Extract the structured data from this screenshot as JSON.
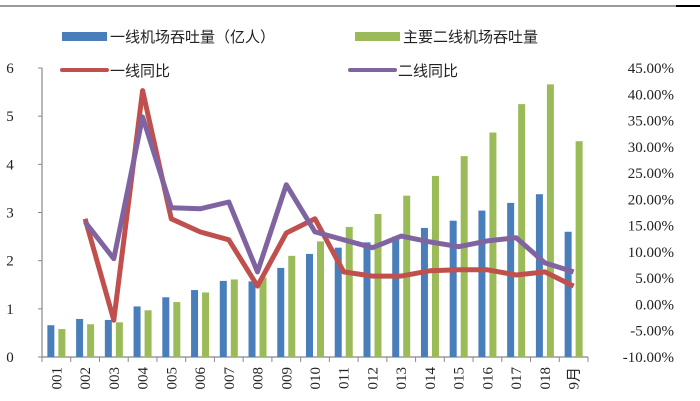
{
  "chart_data": {
    "type": "bar+line",
    "categories": [
      "001",
      "002",
      "003",
      "004",
      "005",
      "006",
      "007",
      "008",
      "009",
      "010",
      "011",
      "012",
      "013",
      "014",
      "015",
      "016",
      "017",
      "018",
      "9月"
    ],
    "series": [
      {
        "name": "一线机场吞吐量（亿人）",
        "type": "bar",
        "axis": "left",
        "color": "#4a7ebb",
        "values": [
          0.66,
          0.79,
          0.77,
          1.05,
          1.24,
          1.39,
          1.58,
          1.57,
          1.85,
          2.14,
          2.27,
          2.38,
          2.5,
          2.68,
          2.83,
          3.04,
          3.2,
          3.38,
          2.6
        ]
      },
      {
        "name": "主要二线机场吞吐量",
        "type": "bar",
        "axis": "left",
        "color": "#9bbb59",
        "values": [
          0.58,
          0.68,
          0.72,
          0.97,
          1.14,
          1.34,
          1.61,
          1.65,
          2.1,
          2.4,
          2.7,
          2.97,
          3.35,
          3.76,
          4.17,
          4.66,
          5.25,
          5.66,
          4.48
        ]
      },
      {
        "name": "一线同比",
        "type": "line",
        "axis": "right",
        "color": "#c0504d",
        "values": [
          null,
          16.3,
          -3.0,
          40.7,
          16.3,
          13.8,
          12.3,
          3.5,
          13.6,
          16.3,
          6.2,
          5.4,
          5.4,
          6.4,
          6.6,
          6.6,
          5.6,
          6.2,
          3.5
        ]
      },
      {
        "name": "二线同比",
        "type": "line",
        "axis": "right",
        "color": "#8064a2",
        "values": [
          null,
          15.7,
          8.7,
          35.7,
          18.4,
          18.2,
          19.5,
          6.2,
          22.8,
          13.8,
          12.3,
          10.8,
          13.0,
          11.9,
          11.0,
          12.1,
          12.7,
          7.9,
          6.2
        ]
      }
    ],
    "left_axis": {
      "ylim": [
        0,
        6
      ],
      "ticks": [
        "0",
        "1",
        "2",
        "3",
        "4",
        "5",
        "6"
      ]
    },
    "right_axis": {
      "ylim": [
        -10,
        45
      ],
      "ticks": [
        "-10.00%",
        "-5.00%",
        "0.00%",
        "5.00%",
        "10.00%",
        "15.00%",
        "20.00%",
        "25.00%",
        "30.00%",
        "35.00%",
        "40.00%",
        "45.00%"
      ]
    },
    "legend": "top",
    "grid": false
  }
}
